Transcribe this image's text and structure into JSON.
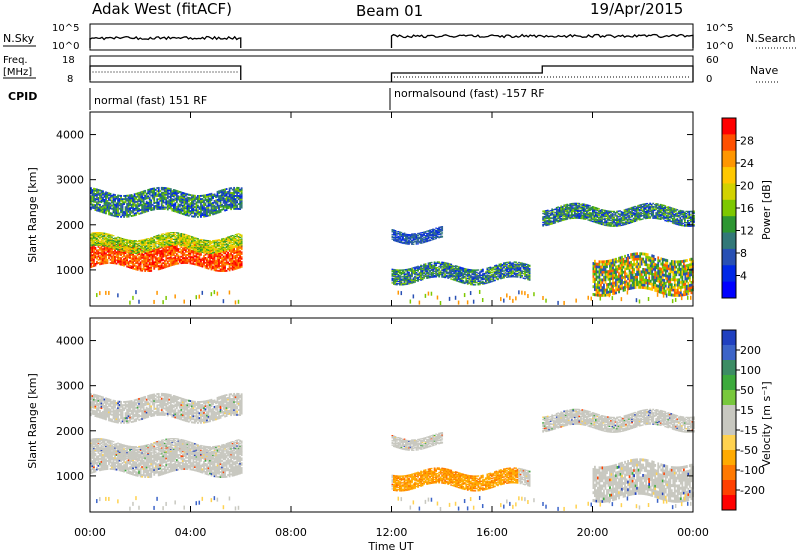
{
  "header": {
    "station": "Adak West (fitACF)",
    "beam": "Beam 01",
    "date": "19/Apr/2015"
  },
  "top_panels": {
    "nsky_label": "N.Sky",
    "nsearch_label": "N.Search",
    "freq_label": "Freq.",
    "freq_unit": "[MHz]",
    "nave_label": "Nave",
    "cpid_label": "CPID",
    "left_ticks_nsky": [
      "10^5",
      "10^0"
    ],
    "right_ticks_nsearch": [
      "10^5",
      "10^0"
    ],
    "left_ticks_freq": [
      "18",
      "8"
    ],
    "right_ticks_nave": [
      "60",
      "0"
    ],
    "cpid_segments": [
      {
        "label": "normal (fast) 151 RF",
        "start_hour": 0,
        "end_hour": 6
      },
      {
        "label": "normalsound (fast) -157 RF",
        "start_hour": 12,
        "end_hour": 24
      }
    ]
  },
  "colorbars": {
    "power": {
      "title": "Power [dB]",
      "ticks": [
        "28",
        "24",
        "20",
        "16",
        "12",
        "8",
        "4"
      ],
      "colors": [
        "#ff0000",
        "#ff5000",
        "#ff9600",
        "#ffc800",
        "#d2d200",
        "#7dc800",
        "#2d9632",
        "#327878",
        "#2850b4",
        "#0028e6",
        "#0000ff"
      ]
    },
    "velocity": {
      "title": "Velocity [m s⁻¹]",
      "ticks": [
        "200",
        "100",
        "50",
        "15",
        "-15",
        "-50",
        "-100",
        "-200"
      ],
      "colors": [
        "#2040c0",
        "#3c64c8",
        "#3c8c64",
        "#3caa3c",
        "#78c83c",
        "#c8c8c0",
        "#c8c8c0",
        "#ffd250",
        "#ffaa00",
        "#ff7800",
        "#ff4000",
        "#ff0000"
      ]
    }
  },
  "chart_data": [
    {
      "type": "heatmap",
      "name": "power",
      "ylabel": "Slant Range [km]",
      "yticks": [
        1000,
        2000,
        3000,
        4000
      ],
      "ylim": [
        200,
        4500
      ],
      "xlim": [
        0,
        24
      ],
      "data_gap_hours": [
        6,
        12
      ],
      "echo_bands": [
        {
          "t0": 0,
          "t1": 6,
          "r0": 1050,
          "r1": 1550,
          "level": "high"
        },
        {
          "t0": 0,
          "t1": 6,
          "r0": 1450,
          "r1": 1750,
          "level": "mid"
        },
        {
          "t0": 0,
          "t1": 6,
          "r0": 2250,
          "r1": 2750,
          "level": "low-mid"
        },
        {
          "t0": 12,
          "t1": 14,
          "r0": 1650,
          "r1": 1900,
          "level": "low"
        },
        {
          "t0": 12,
          "t1": 17.5,
          "r0": 750,
          "r1": 1100,
          "level": "low-mid"
        },
        {
          "t0": 18,
          "t1": 24,
          "r0": 2050,
          "r1": 2400,
          "level": "low-mid"
        },
        {
          "t0": 20,
          "t1": 24,
          "r0": 500,
          "r1": 1300,
          "level": "mid-high"
        }
      ]
    },
    {
      "type": "heatmap",
      "name": "velocity",
      "ylabel": "Slant Range [km]",
      "yticks": [
        1000,
        2000,
        3000,
        4000
      ],
      "ylim": [
        200,
        4500
      ],
      "xlim": [
        0,
        24
      ],
      "xlabel": "Time UT",
      "xticks": [
        "00:00",
        "04:00",
        "08:00",
        "12:00",
        "16:00",
        "20:00",
        "00:00"
      ],
      "data_gap_hours": [
        6,
        12
      ]
    }
  ]
}
